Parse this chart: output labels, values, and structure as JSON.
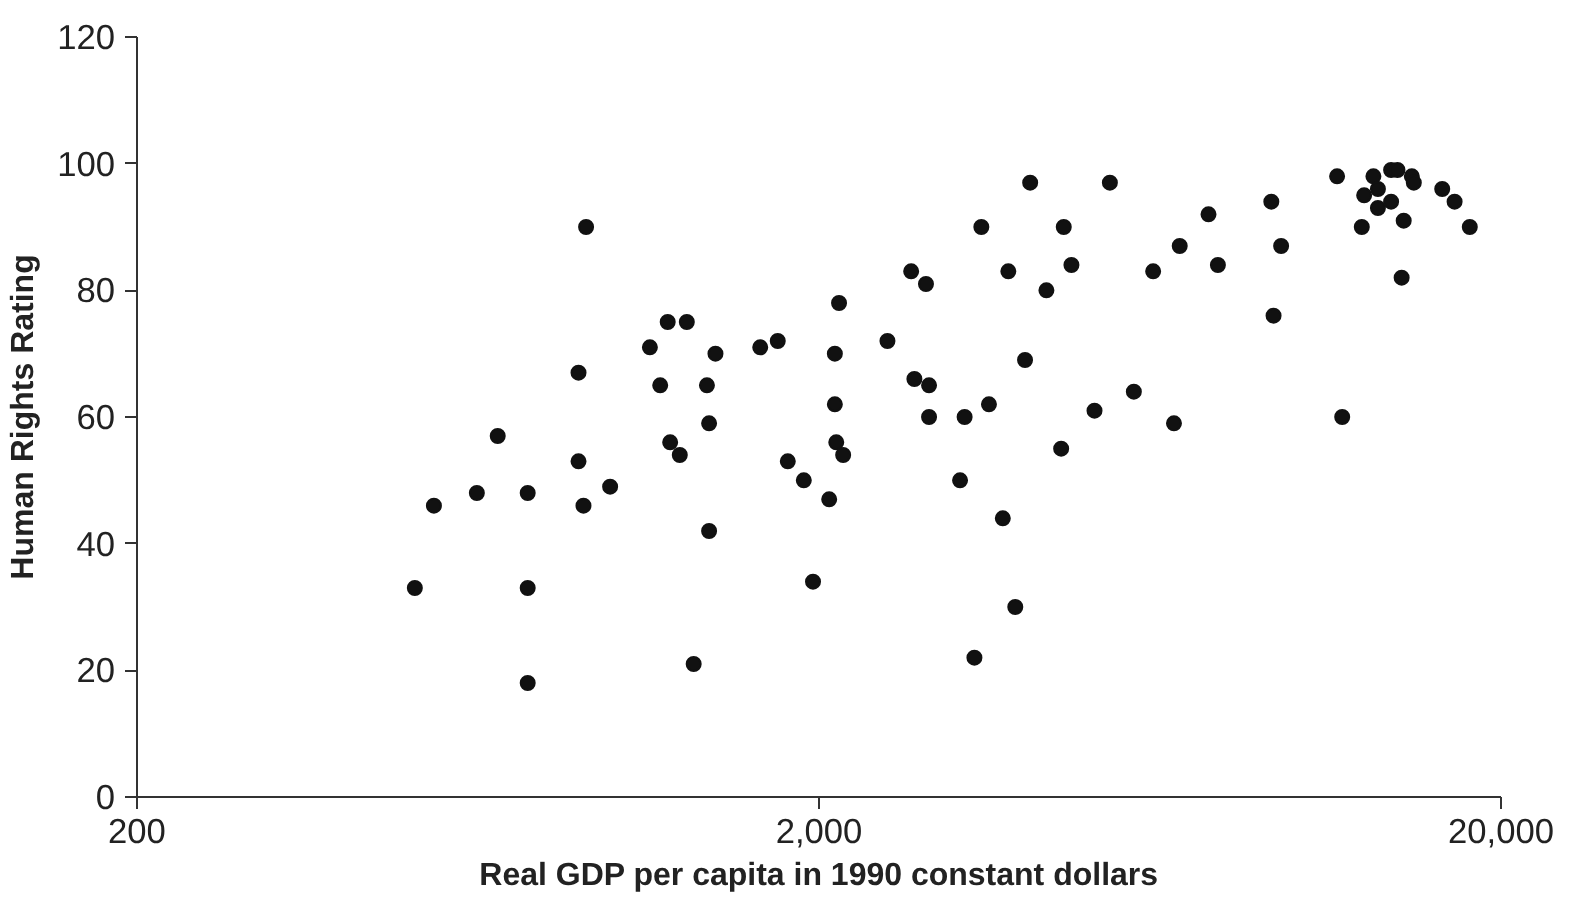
{
  "chart_data": {
    "type": "scatter",
    "xlabel": "Real GDP per capita in 1990 constant dollars",
    "ylabel": "Human Rights Rating",
    "log": "x",
    "xlim": [
      200,
      20000
    ],
    "ylim": [
      0,
      120
    ],
    "xticks": [
      {
        "value": 200,
        "label": "200"
      },
      {
        "value": 2000,
        "label": "2,000"
      },
      {
        "value": 20000,
        "label": "20,000"
      }
    ],
    "yticks": [
      0,
      20,
      40,
      60,
      80,
      100,
      120
    ],
    "grid": false,
    "marker": "circle",
    "series": [
      {
        "color": "#111111",
        "x": [
          511,
          545,
          630,
          676,
          748,
          748,
          748,
          888,
          888,
          903,
          911,
          988,
          1130,
          1170,
          1200,
          1210,
          1250,
          1280,
          1310,
          1370,
          1380,
          1380,
          1410,
          1640,
          1740,
          1800,
          1900,
          1960,
          2070,
          2110,
          2110,
          2120,
          2140,
          2170,
          2520,
          2730,
          2760,
          2870,
          2900,
          2900,
          3220,
          3270,
          3380,
          3460,
          3550,
          3720,
          3790,
          3880,
          4010,
          4080,
          4310,
          4530,
          4570,
          4690,
          5070,
          5340,
          5790,
          6180,
          6630,
          6760,
          7450,
          7690,
          9210,
          9280,
          9520,
          11500,
          11700,
          12500,
          12600,
          13000,
          13200,
          13200,
          13800,
          13800,
          14100,
          14300,
          14400,
          14800,
          14900,
          16400,
          17100,
          18000
        ],
        "values": [
          33,
          46,
          48,
          57,
          48,
          33,
          18,
          67,
          53,
          46,
          90,
          49,
          71,
          65,
          75,
          56,
          54,
          75,
          21,
          65,
          59,
          42,
          70,
          71,
          72,
          53,
          50,
          34,
          47,
          70,
          62,
          56,
          78,
          54,
          72,
          83,
          66,
          81,
          65,
          60,
          50,
          60,
          22,
          90,
          62,
          44,
          83,
          30,
          69,
          97,
          80,
          55,
          90,
          84,
          61,
          97,
          64,
          83,
          59,
          87,
          92,
          84,
          94,
          76,
          87,
          98,
          60,
          90,
          95,
          98,
          96,
          93,
          99,
          94,
          99,
          82,
          91,
          98,
          97,
          96,
          94,
          90
        ]
      }
    ]
  }
}
